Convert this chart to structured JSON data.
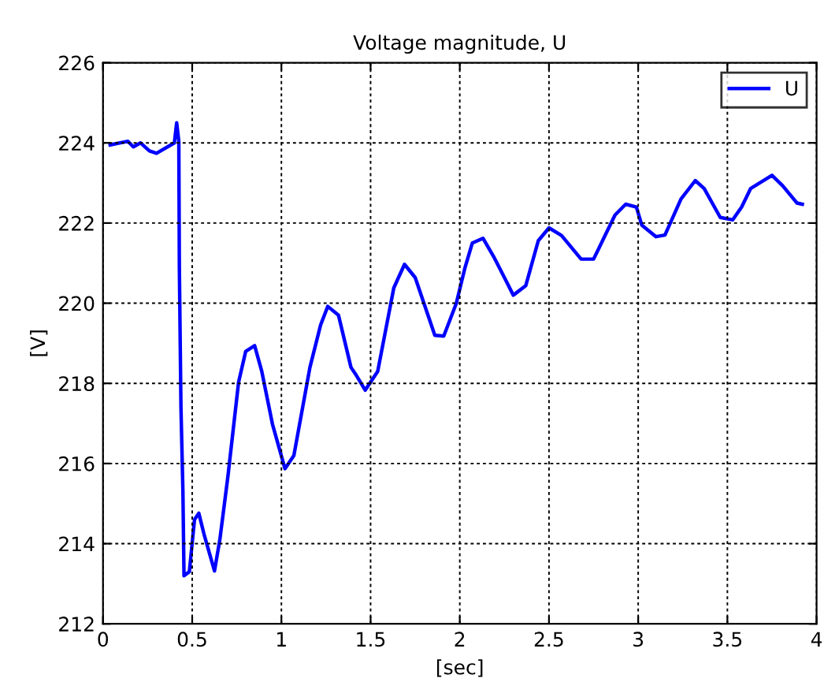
{
  "chart_data": {
    "type": "line",
    "title": "Voltage magnitude, U",
    "xlabel": "[sec]",
    "ylabel": "[V]",
    "xlim": [
      0,
      4
    ],
    "xticks": [
      0,
      0.5,
      1,
      1.5,
      2,
      2.5,
      3,
      3.5,
      4
    ],
    "ylim": [
      212,
      226
    ],
    "yticks": [
      212,
      214,
      216,
      218,
      220,
      222,
      224,
      226
    ],
    "grid": true,
    "legend": "top right",
    "line_style": "solid",
    "marker": "none",
    "series": [
      {
        "name": "U",
        "color": "#0000ff",
        "x": [
          0.04,
          0.14,
          0.17,
          0.21,
          0.26,
          0.3,
          0.4,
          0.413,
          0.425,
          0.428,
          0.437,
          0.448,
          0.454,
          0.484,
          0.513,
          0.537,
          0.566,
          0.625,
          0.655,
          0.7,
          0.76,
          0.8,
          0.85,
          0.89,
          0.95,
          1.02,
          1.07,
          1.16,
          1.22,
          1.26,
          1.32,
          1.39,
          1.42,
          1.47,
          1.54,
          1.63,
          1.69,
          1.75,
          1.86,
          1.91,
          1.98,
          2.03,
          2.07,
          2.13,
          2.19,
          2.25,
          2.3,
          2.37,
          2.44,
          2.5,
          2.57,
          2.68,
          2.75,
          2.87,
          2.93,
          2.99,
          3.02,
          3.1,
          3.15,
          3.24,
          3.32,
          3.37,
          3.46,
          3.53,
          3.58,
          3.63,
          3.75,
          3.81,
          3.89,
          3.92
        ],
        "values": [
          223.95,
          224.04,
          223.9,
          224.0,
          223.8,
          223.74,
          224.0,
          224.5,
          224.04,
          220.9,
          217.4,
          215.3,
          213.2,
          213.3,
          214.6,
          214.76,
          214.24,
          213.32,
          214.1,
          215.67,
          218.03,
          218.8,
          218.94,
          218.3,
          216.98,
          215.87,
          216.2,
          218.4,
          219.46,
          219.92,
          219.7,
          218.4,
          218.2,
          217.83,
          218.3,
          220.38,
          220.97,
          220.64,
          219.2,
          219.18,
          219.99,
          220.9,
          221.5,
          221.62,
          221.16,
          220.64,
          220.2,
          220.44,
          221.56,
          221.88,
          221.69,
          221.1,
          221.1,
          222.2,
          222.47,
          222.4,
          221.95,
          221.66,
          221.7,
          222.6,
          223.06,
          222.86,
          222.14,
          222.08,
          222.4,
          222.86,
          223.19,
          222.93,
          222.5,
          222.47
        ]
      }
    ]
  }
}
